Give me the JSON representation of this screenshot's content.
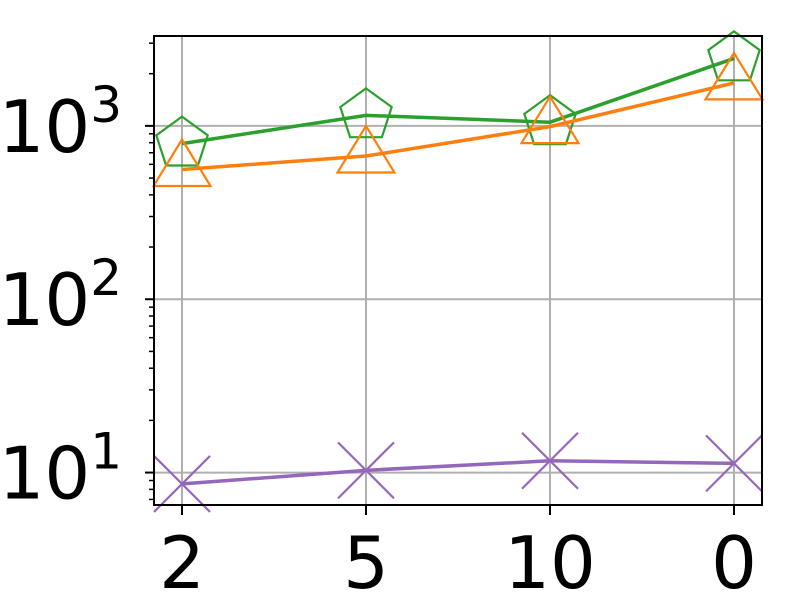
{
  "chart_data": {
    "type": "line",
    "title": "",
    "xlabel": "",
    "ylabel": "",
    "yscale": "log",
    "ylim": [
      6.5,
      3300
    ],
    "categories": [
      "2",
      "5",
      "10",
      "0"
    ],
    "x_tick_labels": [
      "2",
      "5",
      "10",
      "0"
    ],
    "y_ticks": [
      {
        "value": 10,
        "base": "10",
        "exp": "1"
      },
      {
        "value": 100,
        "base": "10",
        "exp": "2"
      },
      {
        "value": 1000,
        "base": "10",
        "exp": "3"
      }
    ],
    "grid": true,
    "legend": "none",
    "series": [
      {
        "color": "#2ca02c",
        "marker": "pentagon",
        "values": [
          790,
          1150,
          1050,
          2450
        ]
      },
      {
        "color": "#ff7f0e",
        "marker": "triangle",
        "values": [
          560,
          670,
          990,
          1770
        ]
      },
      {
        "color": "#9467bd",
        "marker": "x",
        "values": [
          8.6,
          10.3,
          11.7,
          11.3
        ]
      }
    ]
  }
}
